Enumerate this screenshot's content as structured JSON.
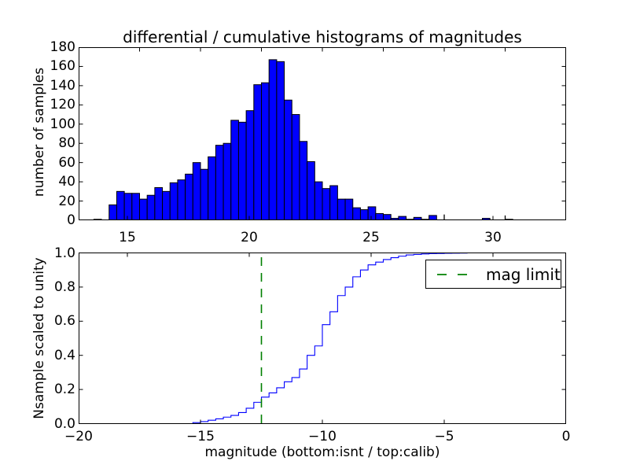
{
  "figure": {
    "title": "differential / cumulative histograms of magnitudes",
    "background": "#ffffff",
    "frame_color": "#000000",
    "hist_fill": "#0000ff",
    "hist_edge": "#000000",
    "line_color": "#0000ff"
  },
  "chart_data": [
    {
      "type": "bar",
      "subplot": "top differential histogram",
      "ylabel": "number of samples",
      "xlim": [
        13,
        33
      ],
      "ylim": [
        0,
        180
      ],
      "xticks": [
        15,
        20,
        25,
        30
      ],
      "xtick_labels": [
        "15",
        "20",
        "25",
        "30"
      ],
      "yticks": [
        0,
        20,
        40,
        60,
        80,
        100,
        120,
        140,
        160,
        180
      ],
      "ytick_labels": [
        "0",
        "20",
        "40",
        "60",
        "80",
        "100",
        "120",
        "140",
        "160",
        "180"
      ],
      "top_spine_twin_ticks_isnt": [
        -17.5,
        -15,
        -12.5,
        -10,
        -7.5,
        -5,
        -2.5
      ],
      "twin_xlim_isnt": [
        -20,
        0
      ],
      "bin_start": 13.0,
      "bin_width": 0.3125,
      "counts": [
        0,
        0,
        1,
        0,
        16,
        30,
        28,
        28,
        22,
        26,
        34,
        30,
        39,
        42,
        48,
        60,
        53,
        66,
        78,
        80,
        104,
        102,
        114,
        141,
        143,
        167,
        165,
        125,
        110,
        82,
        61,
        40,
        33,
        36,
        22,
        22,
        13,
        11,
        14,
        7,
        6,
        2,
        4,
        1,
        3,
        1,
        5,
        0,
        0,
        0,
        0,
        0,
        0,
        2,
        0,
        0,
        1,
        0,
        0,
        0,
        0,
        0,
        0,
        0
      ],
      "narrow_spikes": [
        {
          "x": 28.0,
          "count": 6
        },
        {
          "x": 30.5,
          "count": 5
        }
      ],
      "bar_fill": "#0000ff",
      "bar_edge": "#000000",
      "grid": false
    },
    {
      "type": "line",
      "subplot": "bottom cumulative histogram (step)",
      "ylabel": "Nsample scaled to unity",
      "xlabel": "magnitude (bottom:isnt / top:calib)",
      "xlim": [
        -20,
        0
      ],
      "ylim": [
        0.0,
        1.0
      ],
      "xticks": [
        -20,
        -15,
        -10,
        -5,
        0
      ],
      "xtick_labels": [
        "−20",
        "−15",
        "−10",
        "−5",
        "0"
      ],
      "yticks": [
        0.0,
        0.2,
        0.4,
        0.6,
        0.8,
        1.0
      ],
      "ytick_labels": [
        "0.0",
        "0.2",
        "0.4",
        "0.6",
        "0.8",
        "1.0"
      ],
      "top_spine_twin_ticks_calib": [
        15,
        20,
        25,
        30
      ],
      "twin_xlim_calib": [
        13,
        33
      ],
      "step_start_x": -15.3125,
      "step_dx": 0.3125,
      "step_values": [
        0.006,
        0.012,
        0.02,
        0.028,
        0.038,
        0.048,
        0.065,
        0.09,
        0.125,
        0.155,
        0.18,
        0.21,
        0.245,
        0.27,
        0.32,
        0.4,
        0.455,
        0.58,
        0.655,
        0.75,
        0.8,
        0.86,
        0.9,
        0.93,
        0.946,
        0.961,
        0.972,
        0.981,
        0.988,
        0.991,
        0.994,
        0.996,
        0.997,
        0.998,
        0.9985,
        0.999,
        1.0
      ],
      "closes_to_zero_at_right_edge": true,
      "line_color": "#0000ff",
      "vline": {
        "x": -12.5,
        "color": "#008000",
        "style": "dashed"
      },
      "legend": {
        "label": "mag limit",
        "line_color": "#008000",
        "position": "upper right"
      },
      "grid": false
    }
  ]
}
